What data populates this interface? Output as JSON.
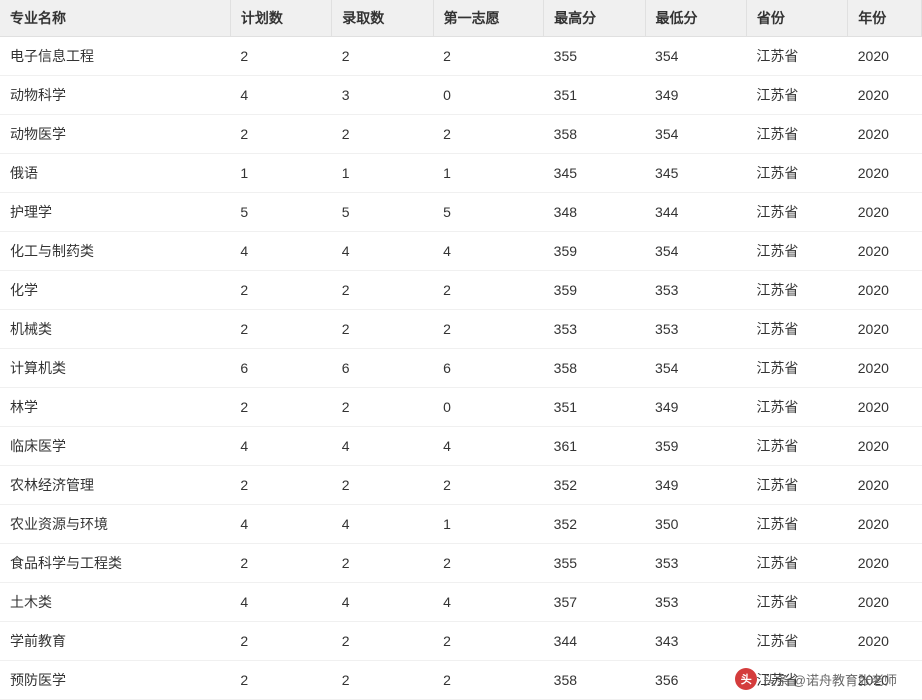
{
  "table": {
    "columns": [
      {
        "key": "major",
        "label": "专业名称",
        "width": "25%"
      },
      {
        "key": "plan",
        "label": "计划数",
        "width": "11%"
      },
      {
        "key": "admit",
        "label": "录取数",
        "width": "11%"
      },
      {
        "key": "first",
        "label": "第一志愿",
        "width": "12%"
      },
      {
        "key": "max",
        "label": "最高分",
        "width": "11%"
      },
      {
        "key": "min",
        "label": "最低分",
        "width": "11%"
      },
      {
        "key": "province",
        "label": "省份",
        "width": "11%"
      },
      {
        "key": "year",
        "label": "年份",
        "width": "8%"
      }
    ],
    "rows": [
      [
        "电子信息工程",
        "2",
        "2",
        "2",
        "355",
        "354",
        "江苏省",
        "2020"
      ],
      [
        "动物科学",
        "4",
        "3",
        "0",
        "351",
        "349",
        "江苏省",
        "2020"
      ],
      [
        "动物医学",
        "2",
        "2",
        "2",
        "358",
        "354",
        "江苏省",
        "2020"
      ],
      [
        "俄语",
        "1",
        "1",
        "1",
        "345",
        "345",
        "江苏省",
        "2020"
      ],
      [
        "护理学",
        "5",
        "5",
        "5",
        "348",
        "344",
        "江苏省",
        "2020"
      ],
      [
        "化工与制药类",
        "4",
        "4",
        "4",
        "359",
        "354",
        "江苏省",
        "2020"
      ],
      [
        "化学",
        "2",
        "2",
        "2",
        "359",
        "353",
        "江苏省",
        "2020"
      ],
      [
        "机械类",
        "2",
        "2",
        "2",
        "353",
        "353",
        "江苏省",
        "2020"
      ],
      [
        "计算机类",
        "6",
        "6",
        "6",
        "358",
        "354",
        "江苏省",
        "2020"
      ],
      [
        "林学",
        "2",
        "2",
        "0",
        "351",
        "349",
        "江苏省",
        "2020"
      ],
      [
        "临床医学",
        "4",
        "4",
        "4",
        "361",
        "359",
        "江苏省",
        "2020"
      ],
      [
        "农林经济管理",
        "2",
        "2",
        "2",
        "352",
        "349",
        "江苏省",
        "2020"
      ],
      [
        "农业资源与环境",
        "4",
        "4",
        "1",
        "352",
        "350",
        "江苏省",
        "2020"
      ],
      [
        "食品科学与工程类",
        "2",
        "2",
        "2",
        "355",
        "353",
        "江苏省",
        "2020"
      ],
      [
        "土木类",
        "4",
        "4",
        "4",
        "357",
        "353",
        "江苏省",
        "2020"
      ],
      [
        "学前教育",
        "2",
        "2",
        "2",
        "344",
        "343",
        "江苏省",
        "2020"
      ],
      [
        "预防医学",
        "2",
        "2",
        "2",
        "358",
        "356",
        "江苏省",
        "2020"
      ]
    ],
    "header_bg": "#f0f0f0",
    "border_color": "#e0e0e0",
    "row_border_color": "#f0f0f0",
    "text_color": "#333333",
    "font_size": 14
  },
  "watermark": {
    "icon_text": "头",
    "text": "头条 @诺舟教育张老师",
    "icon_bg": "#d43c3c",
    "icon_color": "#ffffff"
  }
}
